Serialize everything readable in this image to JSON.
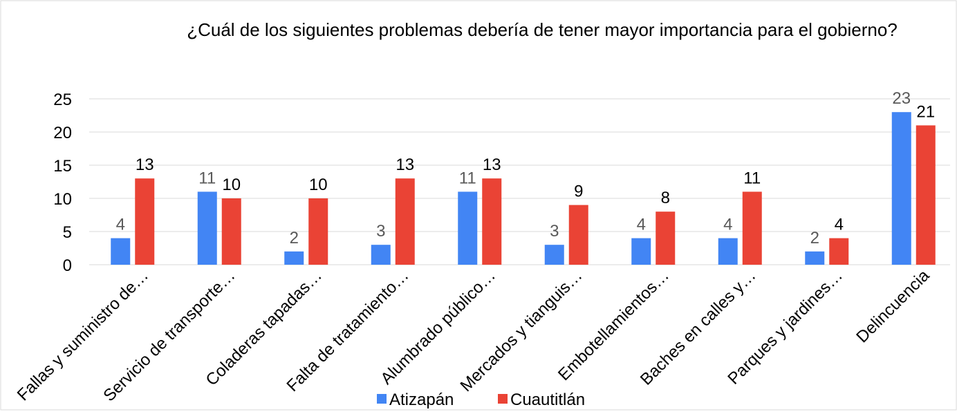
{
  "chart_data": {
    "type": "bar",
    "title": "¿Cuál de los siguientes problemas debería de tener mayor importancia para el gobierno?",
    "categories": [
      "Fallas y suministro de…",
      "Servicio de transporte…",
      "Coladeras tapadas…",
      "Falta de tratamiento…",
      "Alumbrado público…",
      "Mercados y tianguis…",
      "Embotellamientos…",
      "Baches en calles y…",
      "Parques y jardines…",
      "Delincuencia"
    ],
    "series": [
      {
        "name": "Atizapán",
        "color": "#4285f4",
        "values": [
          4,
          11,
          2,
          3,
          11,
          3,
          4,
          4,
          2,
          23
        ]
      },
      {
        "name": "Cuautitlán",
        "color": "#ea4335",
        "values": [
          13,
          10,
          10,
          13,
          13,
          9,
          8,
          11,
          4,
          21
        ]
      }
    ],
    "ylim": [
      0,
      25
    ],
    "yticks": [
      0,
      5,
      10,
      15,
      20,
      25
    ],
    "grid": true,
    "legend": "bottom"
  }
}
